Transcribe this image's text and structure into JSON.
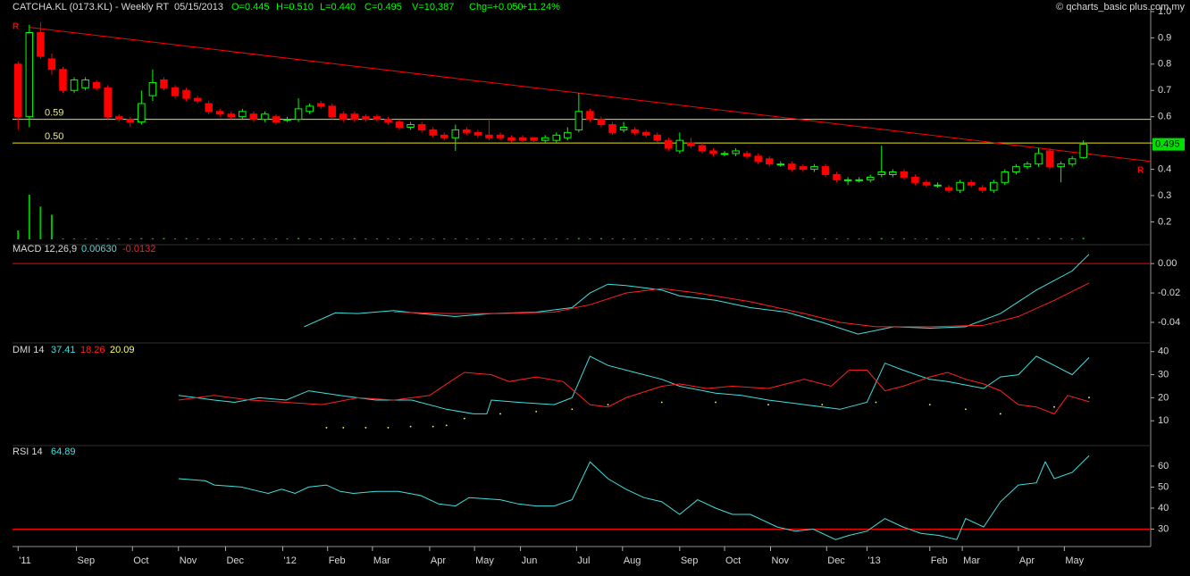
{
  "header": {
    "title": "CATCHA.KL (0173.KL) - Weekly RT  05/15/2013",
    "quote": [
      "O=0.445",
      "H=0.510",
      "L=0.440",
      "C=0.495",
      "V=10,387",
      "Chg=+0.050",
      "+11.24%"
    ],
    "copyright": "© qcharts_basic plus.com.my"
  },
  "chart_data": [
    {
      "type": "candlestick",
      "up_color": "#00ff00",
      "down_color": "#ff0000",
      "volume_color": "#00c000",
      "open": [
        0.8,
        0.6,
        0.92,
        0.82,
        0.78,
        0.7,
        0.71,
        0.73,
        0.71,
        0.6,
        0.59,
        0.58,
        0.68,
        0.74,
        0.71,
        0.7,
        0.67,
        0.65,
        0.62,
        0.61,
        0.6,
        0.61,
        0.59,
        0.6,
        0.59,
        0.59,
        0.62,
        0.65,
        0.64,
        0.61,
        0.61,
        0.6,
        0.6,
        0.59,
        0.58,
        0.56,
        0.57,
        0.55,
        0.53,
        0.52,
        0.55,
        0.54,
        0.53,
        0.53,
        0.52,
        0.52,
        0.52,
        0.51,
        0.51,
        0.52,
        0.55,
        0.62,
        0.59,
        0.57,
        0.55,
        0.55,
        0.54,
        0.53,
        0.51,
        0.47,
        0.5,
        0.49,
        0.47,
        0.46,
        0.46,
        0.46,
        0.45,
        0.44,
        0.42,
        0.42,
        0.41,
        0.4,
        0.41,
        0.38,
        0.36,
        0.36,
        0.36,
        0.38,
        0.38,
        0.39,
        0.37,
        0.35,
        0.34,
        0.33,
        0.32,
        0.35,
        0.33,
        0.32,
        0.35,
        0.39,
        0.41,
        0.42,
        0.47,
        0.41,
        0.42,
        0.445
      ],
      "high": [
        0.81,
        0.95,
        0.96,
        0.84,
        0.79,
        0.75,
        0.75,
        0.74,
        0.72,
        0.61,
        0.6,
        0.7,
        0.78,
        0.75,
        0.72,
        0.71,
        0.68,
        0.66,
        0.63,
        0.62,
        0.63,
        0.62,
        0.62,
        0.61,
        0.6,
        0.67,
        0.65,
        0.66,
        0.65,
        0.62,
        0.62,
        0.61,
        0.61,
        0.6,
        0.59,
        0.58,
        0.58,
        0.56,
        0.54,
        0.57,
        0.56,
        0.55,
        0.59,
        0.54,
        0.53,
        0.53,
        0.52,
        0.53,
        0.54,
        0.56,
        0.69,
        0.63,
        0.6,
        0.58,
        0.58,
        0.56,
        0.55,
        0.54,
        0.52,
        0.54,
        0.52,
        0.5,
        0.48,
        0.47,
        0.48,
        0.47,
        0.46,
        0.45,
        0.43,
        0.43,
        0.42,
        0.42,
        0.42,
        0.39,
        0.37,
        0.37,
        0.38,
        0.49,
        0.4,
        0.4,
        0.38,
        0.36,
        0.35,
        0.34,
        0.36,
        0.36,
        0.34,
        0.36,
        0.4,
        0.42,
        0.43,
        0.48,
        0.48,
        0.43,
        0.45,
        0.51
      ],
      "low": [
        0.55,
        0.56,
        0.82,
        0.76,
        0.69,
        0.69,
        0.7,
        0.7,
        0.59,
        0.58,
        0.56,
        0.57,
        0.66,
        0.7,
        0.67,
        0.66,
        0.65,
        0.61,
        0.6,
        0.59,
        0.59,
        0.58,
        0.58,
        0.57,
        0.58,
        0.58,
        0.61,
        0.63,
        0.59,
        0.58,
        0.58,
        0.58,
        0.58,
        0.57,
        0.55,
        0.55,
        0.54,
        0.52,
        0.51,
        0.47,
        0.53,
        0.52,
        0.51,
        0.51,
        0.5,
        0.5,
        0.5,
        0.5,
        0.5,
        0.51,
        0.54,
        0.58,
        0.56,
        0.53,
        0.54,
        0.53,
        0.52,
        0.5,
        0.47,
        0.46,
        0.48,
        0.46,
        0.45,
        0.45,
        0.45,
        0.44,
        0.42,
        0.41,
        0.41,
        0.39,
        0.39,
        0.39,
        0.37,
        0.35,
        0.34,
        0.35,
        0.35,
        0.37,
        0.37,
        0.36,
        0.34,
        0.33,
        0.33,
        0.31,
        0.31,
        0.33,
        0.31,
        0.31,
        0.34,
        0.38,
        0.4,
        0.41,
        0.4,
        0.35,
        0.41,
        0.44
      ],
      "close": [
        0.6,
        0.92,
        0.83,
        0.78,
        0.7,
        0.74,
        0.74,
        0.71,
        0.6,
        0.59,
        0.58,
        0.65,
        0.73,
        0.71,
        0.68,
        0.67,
        0.66,
        0.62,
        0.61,
        0.6,
        0.62,
        0.59,
        0.61,
        0.58,
        0.59,
        0.63,
        0.64,
        0.64,
        0.6,
        0.59,
        0.59,
        0.59,
        0.59,
        0.58,
        0.56,
        0.57,
        0.55,
        0.53,
        0.52,
        0.55,
        0.54,
        0.53,
        0.52,
        0.52,
        0.51,
        0.51,
        0.51,
        0.52,
        0.53,
        0.54,
        0.62,
        0.59,
        0.57,
        0.54,
        0.56,
        0.54,
        0.53,
        0.51,
        0.48,
        0.51,
        0.49,
        0.47,
        0.46,
        0.46,
        0.47,
        0.45,
        0.43,
        0.42,
        0.42,
        0.4,
        0.4,
        0.41,
        0.38,
        0.36,
        0.36,
        0.36,
        0.37,
        0.39,
        0.39,
        0.37,
        0.35,
        0.34,
        0.34,
        0.32,
        0.35,
        0.34,
        0.32,
        0.35,
        0.39,
        0.41,
        0.42,
        0.46,
        0.41,
        0.42,
        0.44,
        0.495
      ],
      "volume": [
        60000,
        300000,
        220000,
        165000,
        6000,
        5000,
        4000,
        5000,
        3000,
        4000,
        6000,
        8000,
        7000,
        9000,
        6000,
        8000,
        5000,
        4000,
        3000,
        5000,
        4000,
        3000,
        4000,
        3000,
        4000,
        9000,
        5000,
        4000,
        3000,
        4000,
        8000,
        3000,
        4000,
        3000,
        2000,
        3000,
        2000,
        3000,
        2000,
        4000,
        3000,
        2000,
        5000,
        3000,
        2000,
        2000,
        3000,
        2000,
        3000,
        4000,
        9000,
        6000,
        8000,
        4000,
        3000,
        2000,
        3000,
        2000,
        3000,
        5000,
        3000,
        2000,
        3000,
        2000,
        3000,
        2000,
        3000,
        2000,
        3000,
        2000,
        3000,
        7000,
        3000,
        5000,
        2000,
        3000,
        5000,
        9000,
        6000,
        7000,
        5000,
        3000,
        2000,
        3000,
        4000,
        3000,
        2000,
        3000,
        5000,
        7000,
        6000,
        8000,
        6000,
        7000,
        6000,
        10387
      ],
      "xlim": [
        -0.5,
        101
      ],
      "ylim": [
        0.12,
        1.01
      ],
      "yticks": [
        0.2,
        0.3,
        0.4,
        0.5,
        0.6,
        0.7,
        0.8,
        0.9,
        {
          "value": 1,
          "label": "1.0"
        }
      ],
      "levels": [
        0.59,
        {
          "value": 0.5,
          "label": "0.50"
        }
      ],
      "level_color": "#e6e600",
      "trendline": {
        "x": [
          1,
          101
        ],
        "y": [
          0.94,
          0.43
        ],
        "label": "R",
        "color": "#ff0000"
      },
      "last_price": 0.495
    },
    {
      "type": "line",
      "title": "MACD 12,26,9",
      "xlim": [
        -0.5,
        101
      ],
      "ylim": [
        -0.054,
        0.008
      ],
      "yticks": [
        -0.04,
        -0.02,
        {
          "value": 0,
          "label": "0.00"
        }
      ],
      "reference_lines": [
        {
          "value": 0,
          "color": "#ff0000"
        }
      ],
      "series": [
        {
          "label": "0.00630",
          "color": "#40e0e0",
          "x": [
            25.5,
            28.3,
            30.3,
            33.5,
            35.9,
            39.0,
            42.2,
            46.2,
            49.4,
            51.0,
            52.6,
            54.2,
            57.4,
            59.0,
            62.2,
            65.3,
            68.5,
            71.7,
            74.9,
            78.1,
            81.3,
            84.5,
            87.6,
            90.8,
            94.0,
            95.5
          ],
          "values": [
            -0.043,
            -0.0335,
            -0.034,
            -0.032,
            -0.034,
            -0.036,
            -0.034,
            -0.033,
            -0.03,
            -0.02,
            -0.014,
            -0.015,
            -0.018,
            -0.022,
            -0.025,
            -0.03,
            -0.033,
            -0.04,
            -0.048,
            -0.043,
            -0.044,
            -0.043,
            -0.034,
            -0.018,
            -0.005,
            0.0063
          ]
        },
        {
          "label": "-0.0132",
          "color": "#ff2020",
          "x": [
            33.5,
            38.2,
            43.0,
            47.8,
            51.0,
            54.2,
            57.4,
            60.6,
            65.3,
            70.1,
            73.3,
            76.5,
            81.3,
            86.1,
            89.2,
            92.4,
            95.5
          ],
          "values": [
            -0.033,
            -0.034,
            -0.034,
            -0.033,
            -0.028,
            -0.02,
            -0.017,
            -0.02,
            -0.026,
            -0.034,
            -0.04,
            -0.043,
            -0.043,
            -0.042,
            -0.036,
            -0.025,
            -0.0132
          ]
        }
      ]
    },
    {
      "type": "line",
      "title": "DMI 14",
      "xlim": [
        -0.5,
        101
      ],
      "ylim": [
        0,
        43
      ],
      "yticks": [
        10,
        20,
        30,
        40
      ],
      "series": [
        {
          "label": "37.41",
          "color": "#40e0e0",
          "x": [
            14.3,
            17.5,
            19.3,
            21.5,
            23.9,
            25.9,
            28.7,
            31.9,
            35.1,
            38.2,
            40.6,
            41.8,
            42.2,
            44.6,
            47.8,
            49.4,
            51.0,
            52.6,
            55.0,
            57.4,
            59.0,
            62.2,
            64.5,
            66.9,
            70.1,
            73.3,
            75.7,
            77.3,
            78.9,
            81.3,
            82.9,
            86.1,
            87.6,
            89.2,
            90.8,
            92.4,
            94.0,
            95.5
          ],
          "values": [
            21,
            19,
            18,
            20,
            19,
            23,
            21,
            19,
            19,
            15,
            13,
            13,
            19,
            18,
            17,
            20,
            38,
            34,
            31,
            28,
            25,
            22,
            21,
            19,
            17,
            15,
            18,
            35,
            32,
            28,
            27,
            24,
            29,
            30,
            38,
            34,
            30,
            37.41
          ]
        },
        {
          "label": "18.26",
          "color": "#ff2020",
          "x": [
            14.3,
            17.5,
            20.7,
            23.9,
            27.1,
            30.3,
            33.5,
            36.7,
            38.2,
            39.8,
            42.2,
            43.8,
            46.2,
            48.6,
            51.0,
            52.6,
            54.2,
            57.4,
            59.0,
            61.4,
            63.7,
            66.9,
            68.5,
            70.1,
            72.5,
            74.1,
            75.7,
            77.3,
            78.9,
            81.3,
            82.9,
            84.5,
            86.1,
            87.6,
            89.2,
            90.8,
            92.4,
            93.6,
            95.5
          ],
          "values": [
            19,
            21,
            19,
            18,
            17,
            20,
            19,
            21,
            26,
            31,
            30,
            27,
            29,
            27,
            17,
            16,
            20,
            25,
            26,
            24,
            25,
            24,
            26,
            28,
            25,
            32,
            32,
            23,
            25,
            29,
            31,
            28,
            26,
            23,
            17,
            16,
            13,
            21,
            18.26
          ]
        },
        {
          "label": "20.09",
          "color": "#ffff60",
          "style": "dots",
          "x": [
            27.5,
            29,
            31,
            33,
            35,
            37,
            38.2,
            39.8,
            43.0,
            46.2,
            49.4,
            52.6,
            57.4,
            62.2,
            66.9,
            71.7,
            76.5,
            81.3,
            84.5,
            87.6,
            92.4,
            95.5
          ],
          "values": [
            7,
            7,
            7,
            7,
            7.5,
            7.5,
            8,
            11,
            13,
            14,
            15,
            17,
            18,
            18,
            17,
            17,
            18,
            17,
            15,
            13,
            16,
            20.09
          ]
        }
      ]
    },
    {
      "type": "line",
      "title": "RSI 14",
      "xlim": [
        -0.5,
        101
      ],
      "ylim": [
        23.4,
        67.2
      ],
      "yticks": [
        30,
        40,
        50,
        60
      ],
      "reference_lines": [
        {
          "value": 30,
          "color": "#ff0000"
        }
      ],
      "series": [
        {
          "label": "64.89",
          "color": "#40e0e0",
          "x": [
            14.3,
            16.7,
            17.5,
            19.9,
            21.5,
            22.3,
            23.5,
            24.7,
            25.9,
            27.5,
            28.7,
            29.9,
            31.9,
            33.9,
            35.9,
            37.5,
            39.0,
            40.2,
            43.0,
            44.6,
            46.2,
            47.8,
            49.4,
            51.0,
            52.6,
            54.2,
            55.8,
            57.4,
            59.0,
            60.6,
            62.2,
            63.7,
            65.3,
            66.1,
            67.7,
            69.3,
            70.9,
            72.9,
            74.1,
            75.7,
            77.3,
            78.9,
            80.5,
            82.1,
            83.7,
            84.5,
            86.1,
            87.6,
            89.2,
            90.8,
            91.6,
            92.4,
            94.0,
            95.5
          ],
          "values": [
            54,
            53,
            51,
            50,
            48,
            47,
            49,
            47,
            50,
            51,
            48,
            47,
            48,
            48,
            46,
            42,
            41,
            45,
            44,
            42,
            41,
            41,
            44,
            62,
            54,
            49,
            45,
            43,
            37,
            44,
            40,
            37,
            37,
            35,
            31,
            29,
            30,
            25,
            27,
            29,
            35,
            31,
            28,
            27,
            25,
            35,
            31,
            43,
            51,
            52,
            62,
            54,
            57,
            64.89
          ]
        }
      ],
      "xticks": [
        {
          "value": 0,
          "label": "'11"
        },
        {
          "value": 5.2,
          "label": "Sep"
        },
        {
          "value": 10.2,
          "label": "Oct"
        },
        {
          "value": 14.3,
          "label": "Nov"
        },
        {
          "value": 18.5,
          "label": "Dec"
        },
        {
          "value": 23.6,
          "label": "'12"
        },
        {
          "value": 27.6,
          "label": "Feb"
        },
        {
          "value": 31.6,
          "label": "Mar"
        },
        {
          "value": 36.7,
          "label": "Apr"
        },
        {
          "value": 40.7,
          "label": "May"
        },
        {
          "value": 44.8,
          "label": "Jun"
        },
        {
          "value": 49.8,
          "label": "Jul"
        },
        {
          "value": 53.9,
          "label": "Aug"
        },
        {
          "value": 59,
          "label": "Sep"
        },
        {
          "value": 63,
          "label": "Oct"
        },
        {
          "value": 67.1,
          "label": "Nov"
        },
        {
          "value": 72.1,
          "label": "Dec"
        },
        {
          "value": 75.7,
          "label": "'13"
        },
        {
          "value": 81.3,
          "label": "Feb"
        },
        {
          "value": 84.2,
          "label": "Mar"
        },
        {
          "value": 89.2,
          "label": "Apr"
        },
        {
          "value": 93.3,
          "label": "May"
        }
      ]
    }
  ]
}
